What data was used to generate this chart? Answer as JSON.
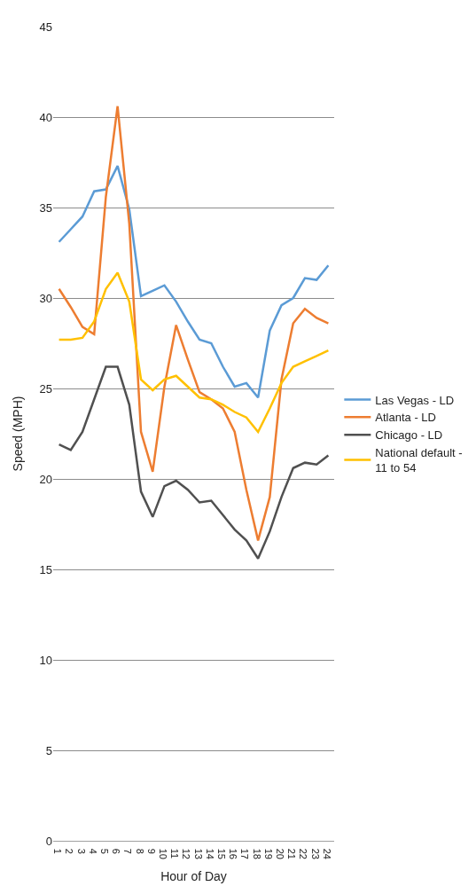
{
  "chart_data": {
    "type": "line",
    "xlabel": "Hour of Day",
    "ylabel": "Speed (MPH)",
    "categories": [
      "1",
      "2",
      "3",
      "4",
      "5",
      "6",
      "7",
      "8",
      "9",
      "10",
      "11",
      "12",
      "13",
      "14",
      "15",
      "16",
      "17",
      "18",
      "19",
      "20",
      "21",
      "22",
      "23",
      "24"
    ],
    "ylim": [
      0,
      45
    ],
    "yticks": [
      0,
      5,
      10,
      15,
      20,
      25,
      30,
      35,
      40,
      45
    ],
    "grid": "y",
    "legend": "right",
    "marker": "none",
    "line_style": "solid",
    "series": [
      {
        "name": "Las Vegas - LD",
        "color": "#5b9bd5",
        "values": [
          33.1,
          33.8,
          34.5,
          35.9,
          36.0,
          37.3,
          34.9,
          30.1,
          30.4,
          30.7,
          29.8,
          28.7,
          27.7,
          27.5,
          26.2,
          25.1,
          25.3,
          24.5,
          28.2,
          29.6,
          30.0,
          31.1,
          31.0,
          31.8
        ]
      },
      {
        "name": "Atlanta - LD",
        "color": "#ed7d31",
        "values": [
          30.5,
          29.5,
          28.4,
          28.0,
          35.6,
          40.6,
          34.1,
          22.6,
          20.4,
          25.1,
          28.5,
          26.6,
          24.8,
          24.4,
          23.9,
          22.6,
          19.4,
          16.6,
          19.0,
          25.5,
          28.6,
          29.4,
          28.9,
          28.6
        ]
      },
      {
        "name": "Chicago - LD",
        "color": "#505050",
        "values": [
          21.9,
          21.6,
          22.6,
          24.4,
          26.2,
          26.2,
          24.1,
          19.3,
          17.9,
          19.6,
          19.9,
          19.4,
          18.7,
          18.8,
          18.0,
          17.2,
          16.6,
          15.6,
          17.1,
          19.0,
          20.6,
          20.9,
          20.8,
          21.3
        ]
      },
      {
        "name": "National default - 11 to 54",
        "color": "#ffc000",
        "values": [
          27.7,
          27.7,
          27.8,
          28.7,
          30.5,
          31.4,
          29.8,
          25.5,
          24.9,
          25.5,
          25.7,
          25.1,
          24.5,
          24.4,
          24.1,
          23.7,
          23.4,
          22.6,
          23.9,
          25.3,
          26.2,
          26.5,
          26.8,
          27.1
        ]
      }
    ]
  }
}
